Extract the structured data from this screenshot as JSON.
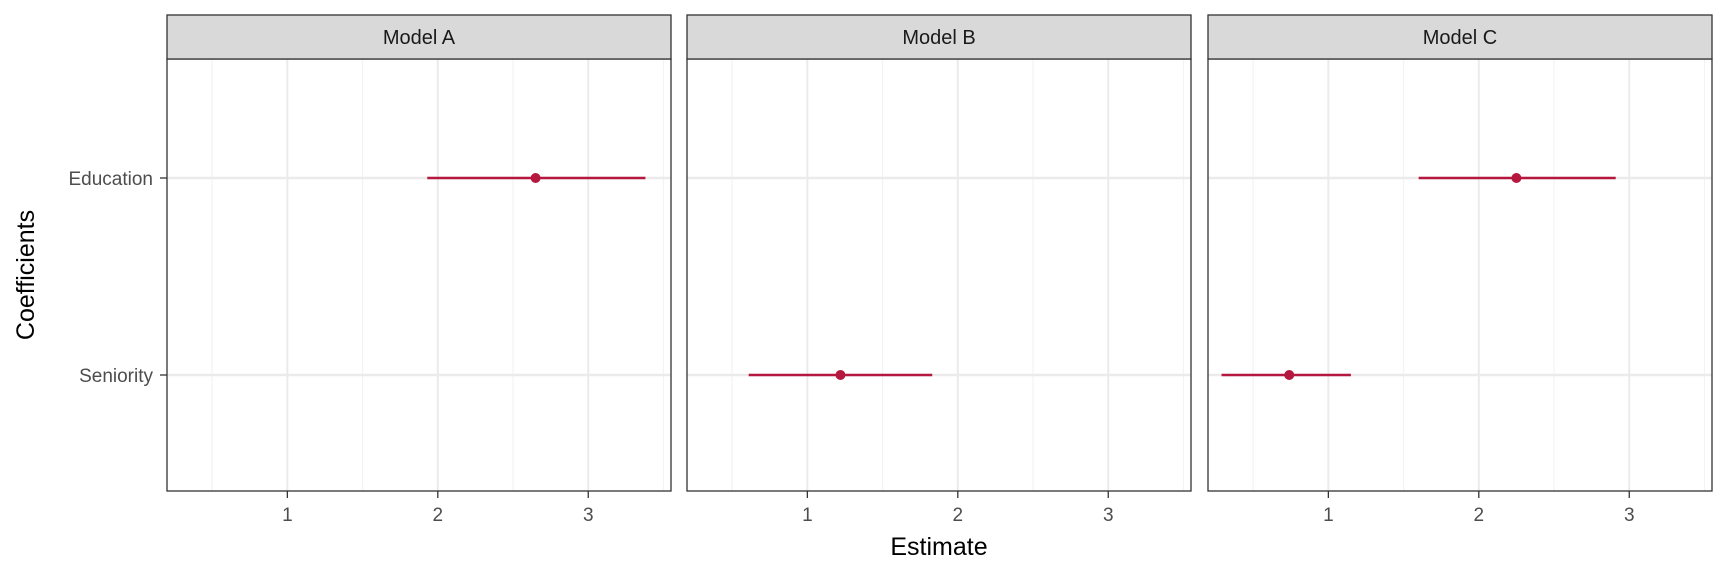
{
  "chart_data": {
    "type": "scatter",
    "subtype": "coefficient-plot-faceted",
    "xlabel": "Estimate",
    "ylabel": "Coefficients",
    "xlim": [
      0.2,
      3.55
    ],
    "x_ticks": [
      1,
      2,
      3
    ],
    "x_tick_labels": [
      "1",
      "2",
      "3"
    ],
    "categories": [
      "Education",
      "Seniority"
    ],
    "grid": true,
    "legend": "none",
    "colors": {
      "point": "#b5173e",
      "strip_fill": "#d9d9d9",
      "grid_major": "#ebebeb",
      "grid_minor": "#f3f3f3",
      "panel_border": "#333333"
    },
    "facets": [
      {
        "name": "Model A",
        "points": [
          {
            "term": "Education",
            "estimate": 2.65,
            "low": 1.93,
            "high": 3.38
          }
        ]
      },
      {
        "name": "Model B",
        "points": [
          {
            "term": "Seniority",
            "estimate": 1.22,
            "low": 0.61,
            "high": 1.83
          }
        ]
      },
      {
        "name": "Model C",
        "points": [
          {
            "term": "Education",
            "estimate": 2.25,
            "low": 1.6,
            "high": 2.91
          },
          {
            "term": "Seniority",
            "estimate": 0.74,
            "low": 0.29,
            "high": 1.15
          }
        ]
      }
    ]
  }
}
